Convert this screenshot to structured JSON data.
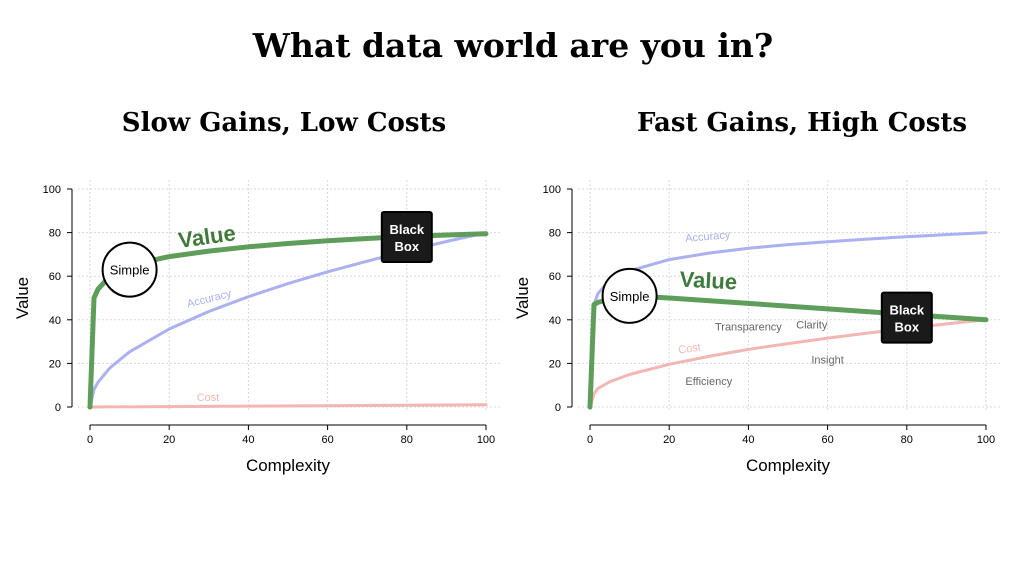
{
  "title": "What data world are you in?",
  "colors": {
    "value": "#5f9e5a",
    "value_label": "#3f7a3a",
    "accuracy": "#aab0f0",
    "cost": "#f3b6b2"
  },
  "chart_data": [
    {
      "type": "line",
      "title": "Slow Gains, Low Costs",
      "xlabel": "Complexity",
      "ylabel": "Value",
      "xlim": [
        0,
        100
      ],
      "ylim": [
        0,
        100
      ],
      "xticks": [
        0,
        20,
        40,
        60,
        80,
        100
      ],
      "yticks": [
        0,
        20,
        40,
        60,
        80,
        100
      ],
      "grid": true,
      "series": [
        {
          "name": "Value",
          "x": [
            0,
            1,
            2,
            5,
            10,
            20,
            30,
            40,
            50,
            60,
            70,
            80,
            90,
            100
          ],
          "y": [
            0,
            50,
            54,
            60,
            65,
            69,
            71.5,
            73.5,
            75,
            76.3,
            77.3,
            78.2,
            78.9,
            79.5
          ]
        },
        {
          "name": "Accuracy",
          "x": [
            0,
            1,
            2,
            5,
            10,
            20,
            30,
            40,
            50,
            60,
            70,
            80,
            90,
            100
          ],
          "y": [
            0,
            8,
            11.3,
            17.9,
            25.3,
            35.8,
            43.8,
            50.6,
            56.6,
            62,
            66.9,
            71.6,
            75.9,
            80
          ]
        },
        {
          "name": "Cost",
          "x": [
            0,
            20,
            40,
            60,
            80,
            100
          ],
          "y": [
            0,
            0.2,
            0.4,
            0.6,
            0.8,
            1
          ]
        }
      ],
      "markers": [
        {
          "label": "Simple",
          "x": 10,
          "y": 63,
          "style": "circle"
        },
        {
          "label_lines": [
            "Black",
            "Box"
          ],
          "x": 80,
          "y": 78,
          "style": "box"
        }
      ],
      "words": []
    },
    {
      "type": "line",
      "title": "Fast Gains, High Costs",
      "xlabel": "Complexity",
      "ylabel": "Value",
      "xlim": [
        0,
        100
      ],
      "ylim": [
        0,
        100
      ],
      "xticks": [
        0,
        20,
        40,
        60,
        80,
        100
      ],
      "yticks": [
        0,
        20,
        40,
        60,
        80,
        100
      ],
      "grid": true,
      "series": [
        {
          "name": "Value",
          "x": [
            0,
            1,
            2,
            5,
            10,
            20,
            40,
            60,
            80,
            100
          ],
          "y": [
            0,
            47,
            48,
            49.5,
            51,
            50,
            47.5,
            45,
            42.5,
            40
          ]
        },
        {
          "name": "Accuracy",
          "x": [
            0,
            1,
            2,
            5,
            10,
            20,
            30,
            40,
            50,
            60,
            70,
            80,
            90,
            100
          ],
          "y": [
            0,
            47,
            52,
            58.3,
            62.5,
            67.6,
            70.6,
            72.8,
            74.5,
            75.8,
            77,
            78.1,
            79.1,
            80
          ]
        },
        {
          "name": "Cost",
          "x": [
            0,
            1,
            2,
            5,
            10,
            20,
            30,
            40,
            50,
            60,
            70,
            80,
            90,
            100
          ],
          "y": [
            0,
            6,
            8.5,
            11.6,
            14.9,
            19.6,
            23.2,
            26.4,
            29.1,
            31.6,
            33.9,
            36,
            38.1,
            40
          ]
        }
      ],
      "markers": [
        {
          "label": "Simple",
          "x": 10,
          "y": 51,
          "style": "circle"
        },
        {
          "label_lines": [
            "Black",
            "Box"
          ],
          "x": 80,
          "y": 41,
          "style": "box"
        }
      ],
      "words": [
        {
          "text": "Transparency",
          "x": 40,
          "y": 35
        },
        {
          "text": "Clarity",
          "x": 56,
          "y": 36
        },
        {
          "text": "Insight",
          "x": 60,
          "y": 20
        },
        {
          "text": "Efficiency",
          "x": 30,
          "y": 10
        }
      ]
    }
  ]
}
